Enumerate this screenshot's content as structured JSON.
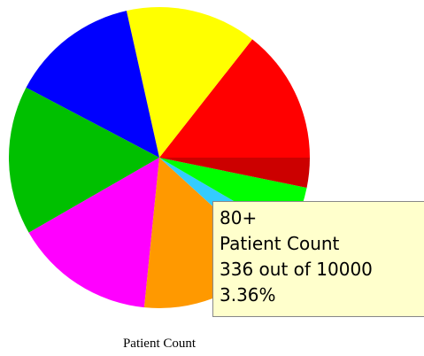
{
  "chart_data": {
    "type": "pie",
    "title": "Patient Count",
    "categories": [
      null,
      null,
      null,
      null,
      null,
      null,
      "80+",
      null,
      null
    ],
    "values": [
      1440,
      1410,
      1380,
      1600,
      1510,
      1484,
      336,
      520,
      320
    ],
    "colors": [
      "#ff0000",
      "#ffff00",
      "#0000ff",
      "#00c000",
      "#ff00ff",
      "#ff9900",
      "#33ccff",
      "#00ff00",
      "#cc0000"
    ],
    "tooltip": {
      "category": "80+",
      "series": "Patient Count",
      "count": "336 out of 10000",
      "percent": "3.36%"
    }
  }
}
